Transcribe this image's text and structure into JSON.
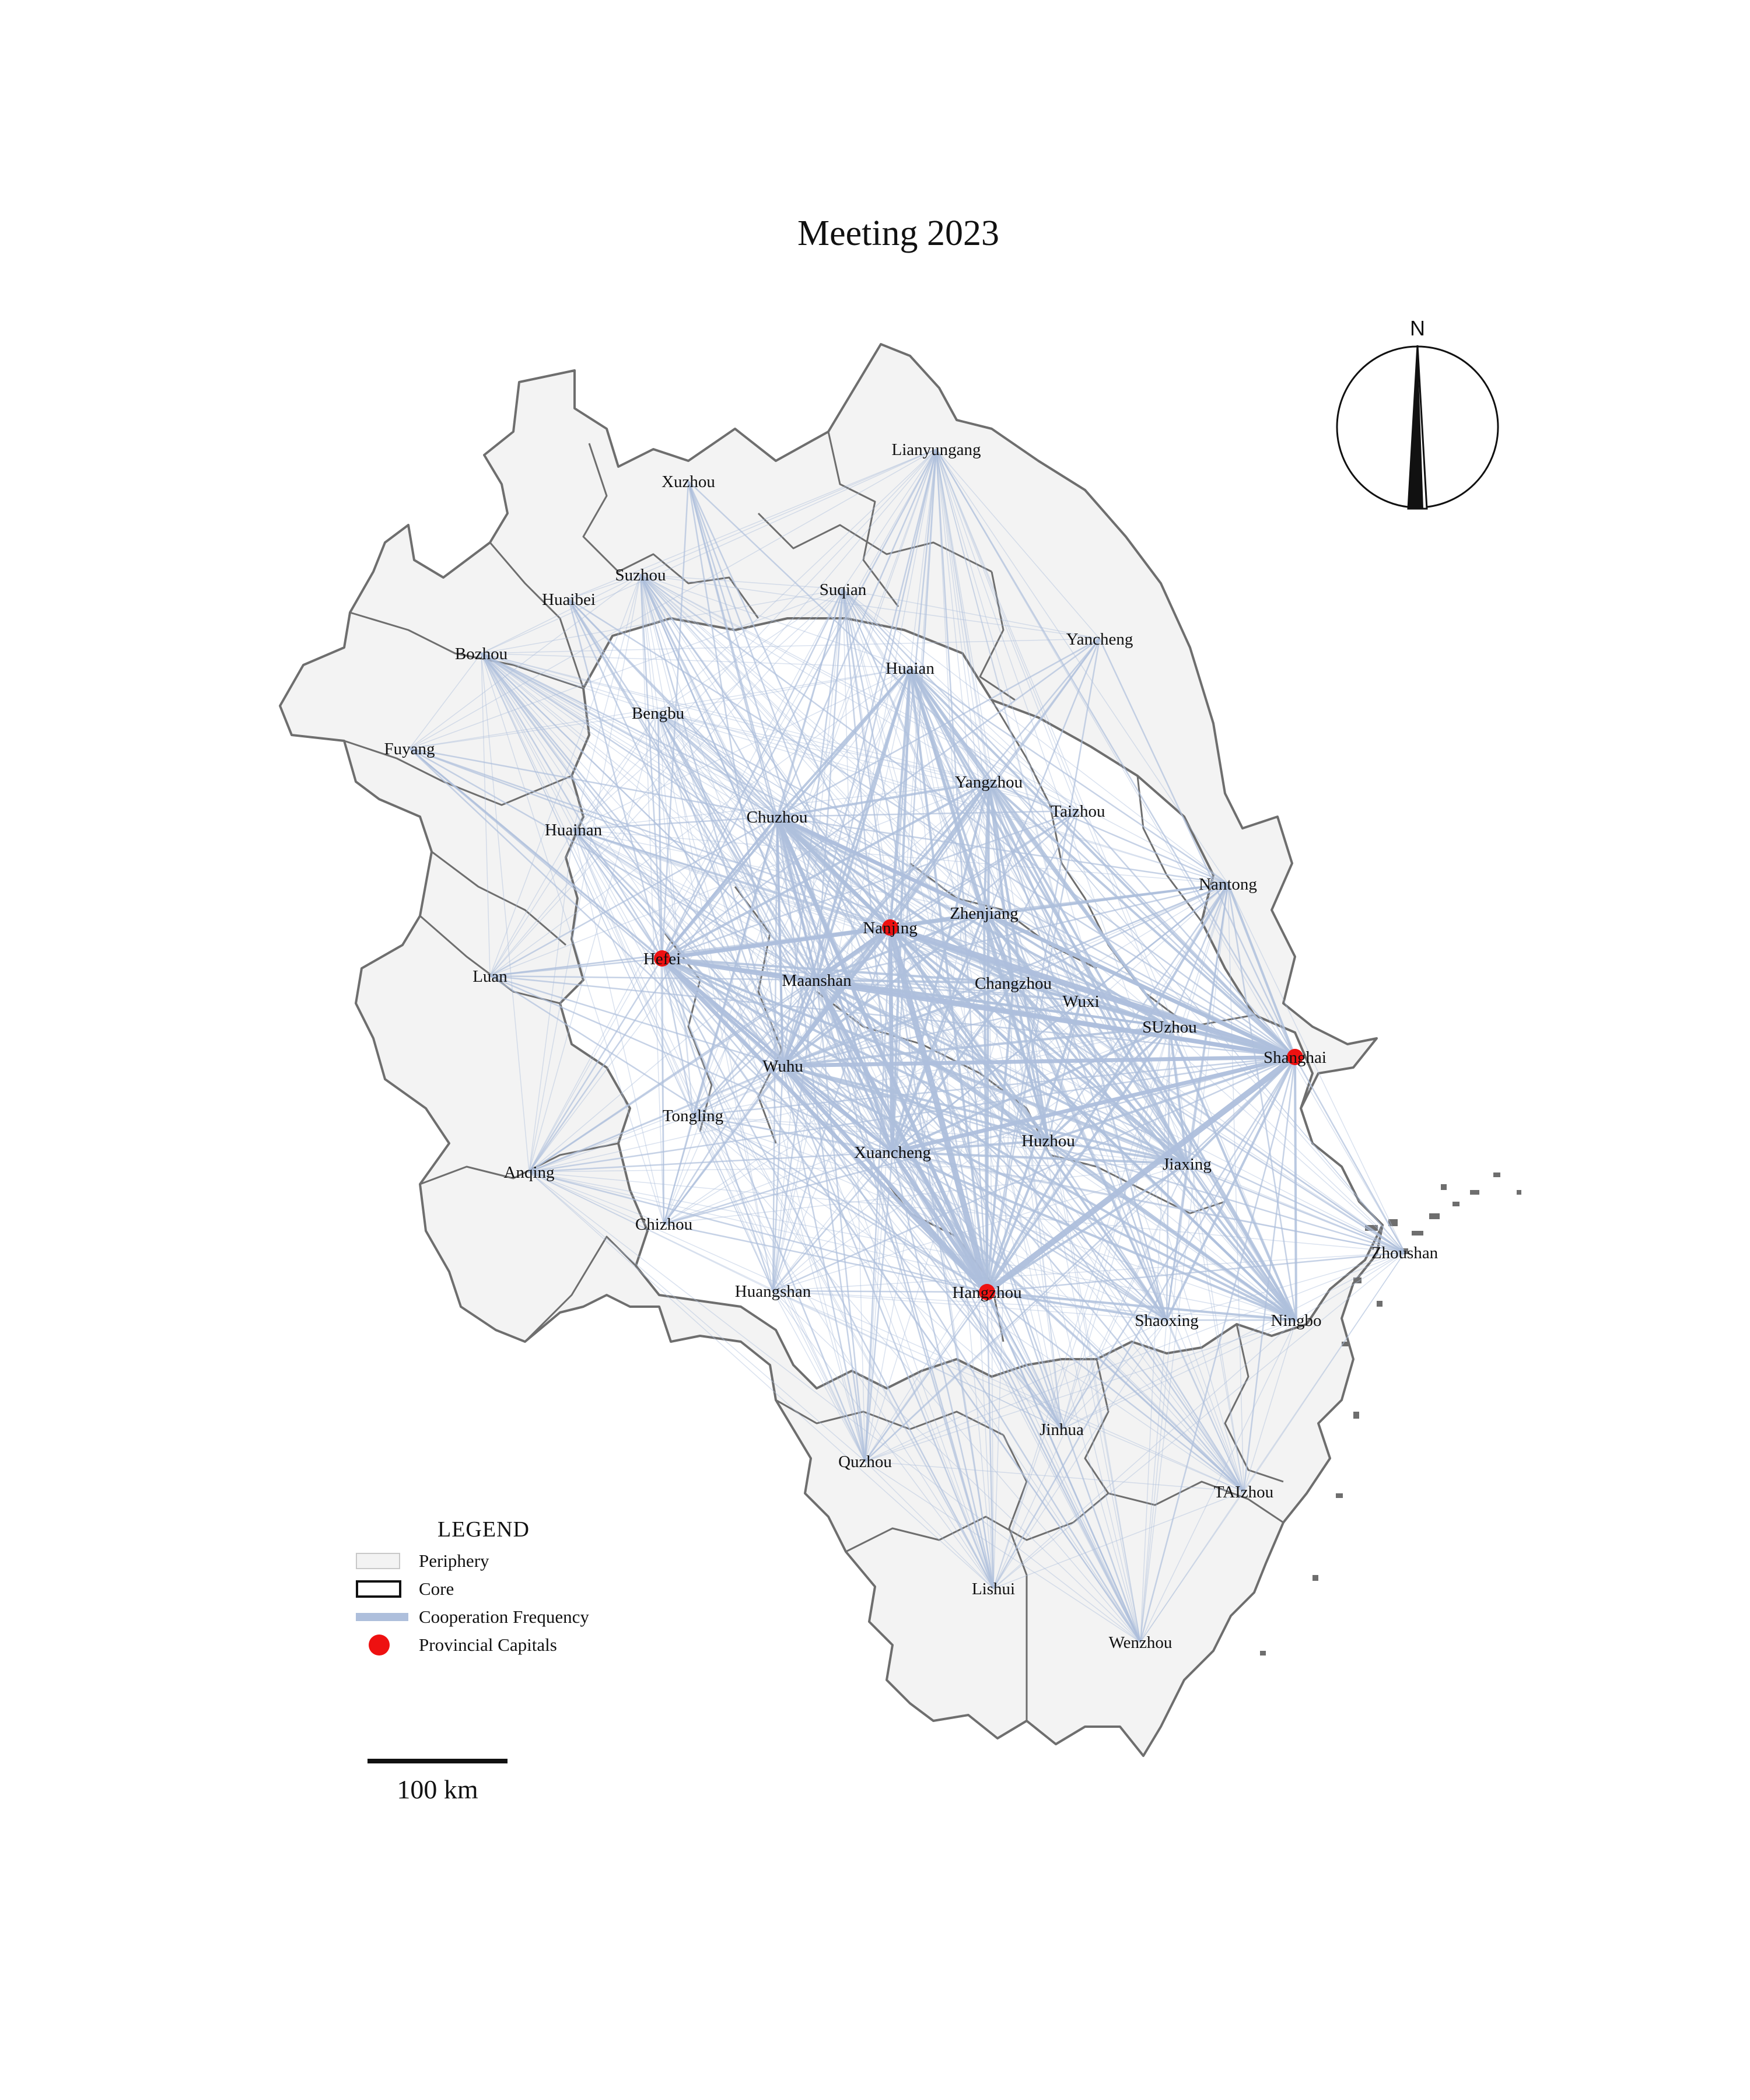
{
  "title": "Meeting 2023",
  "north": {
    "label": "N"
  },
  "legend": {
    "title": "LEGEND",
    "items": [
      {
        "label": "Periphery",
        "symbol": "periphery-swatch"
      },
      {
        "label": "Core",
        "symbol": "core-swatch"
      },
      {
        "label": "Cooperation Frequency",
        "symbol": "cooperation-line",
        "color": "#aebfdc"
      },
      {
        "label": "Provincial Capitals",
        "symbol": "capital-dot",
        "color": "#ee1111"
      }
    ]
  },
  "scale": {
    "label": "100 km"
  },
  "colors": {
    "periphery_fill": "#f3f3f3",
    "core_fill": "#ffffff",
    "boundary": "#6e6e6e",
    "link": "#aebfdc",
    "capital": "#ee1111"
  },
  "cities": [
    {
      "id": "xuzhou",
      "name": "Xuzhou",
      "capital": false
    },
    {
      "id": "lianyungang",
      "name": "Lianyungang",
      "capital": false
    },
    {
      "id": "suzhou_ah",
      "name": "Suzhou",
      "capital": false
    },
    {
      "id": "huaibei",
      "name": "Huaibei",
      "capital": false
    },
    {
      "id": "suqian",
      "name": "Suqian",
      "capital": false
    },
    {
      "id": "bozhou",
      "name": "Bozhou",
      "capital": false
    },
    {
      "id": "yancheng",
      "name": "Yancheng",
      "capital": false
    },
    {
      "id": "huaian",
      "name": "Huaian",
      "capital": false
    },
    {
      "id": "bengbu",
      "name": "Bengbu",
      "capital": false
    },
    {
      "id": "fuyang",
      "name": "Fuyang",
      "capital": false
    },
    {
      "id": "yangzhou",
      "name": "Yangzhou",
      "capital": false
    },
    {
      "id": "chuzhou",
      "name": "Chuzhou",
      "capital": false
    },
    {
      "id": "taizhou_js",
      "name": "Taizhou",
      "capital": false
    },
    {
      "id": "huainan",
      "name": "Huainan",
      "capital": false
    },
    {
      "id": "nantong",
      "name": "Nantong",
      "capital": false
    },
    {
      "id": "zhenjiang",
      "name": "Zhenjiang",
      "capital": false
    },
    {
      "id": "nanjing",
      "name": "Nanjing",
      "capital": true
    },
    {
      "id": "hefei",
      "name": "Hefei",
      "capital": true
    },
    {
      "id": "luan",
      "name": "Luan",
      "capital": false
    },
    {
      "id": "maanshan",
      "name": "Maanshan",
      "capital": false
    },
    {
      "id": "changzhou",
      "name": "Changzhou",
      "capital": false
    },
    {
      "id": "wuxi",
      "name": "Wuxi",
      "capital": false
    },
    {
      "id": "suzhou_js",
      "name": "SUzhou",
      "capital": false
    },
    {
      "id": "shanghai",
      "name": "Shanghai",
      "capital": true
    },
    {
      "id": "wuhu",
      "name": "Wuhu",
      "capital": false
    },
    {
      "id": "tongling",
      "name": "Tongling",
      "capital": false
    },
    {
      "id": "xuancheng",
      "name": "Xuancheng",
      "capital": false
    },
    {
      "id": "huzhou",
      "name": "Huzhou",
      "capital": false
    },
    {
      "id": "jiaxing",
      "name": "Jiaxing",
      "capital": false
    },
    {
      "id": "anqing",
      "name": "Anqing",
      "capital": false
    },
    {
      "id": "chizhou",
      "name": "Chizhou",
      "capital": false
    },
    {
      "id": "zhoushan",
      "name": "Zhoushan",
      "capital": false
    },
    {
      "id": "huangshan",
      "name": "Huangshan",
      "capital": false
    },
    {
      "id": "hangzhou",
      "name": "Hangzhou",
      "capital": true
    },
    {
      "id": "shaoxing",
      "name": "Shaoxing",
      "capital": false
    },
    {
      "id": "ningbo",
      "name": "Ningbo",
      "capital": false
    },
    {
      "id": "jinhua",
      "name": "Jinhua",
      "capital": false
    },
    {
      "id": "quzhou",
      "name": "Quzhou",
      "capital": false
    },
    {
      "id": "taizhou_zj",
      "name": "TAIzhou",
      "capital": false
    },
    {
      "id": "lishui",
      "name": "Lishui",
      "capital": false
    },
    {
      "id": "wenzhou",
      "name": "Wenzhou",
      "capital": false
    }
  ]
}
